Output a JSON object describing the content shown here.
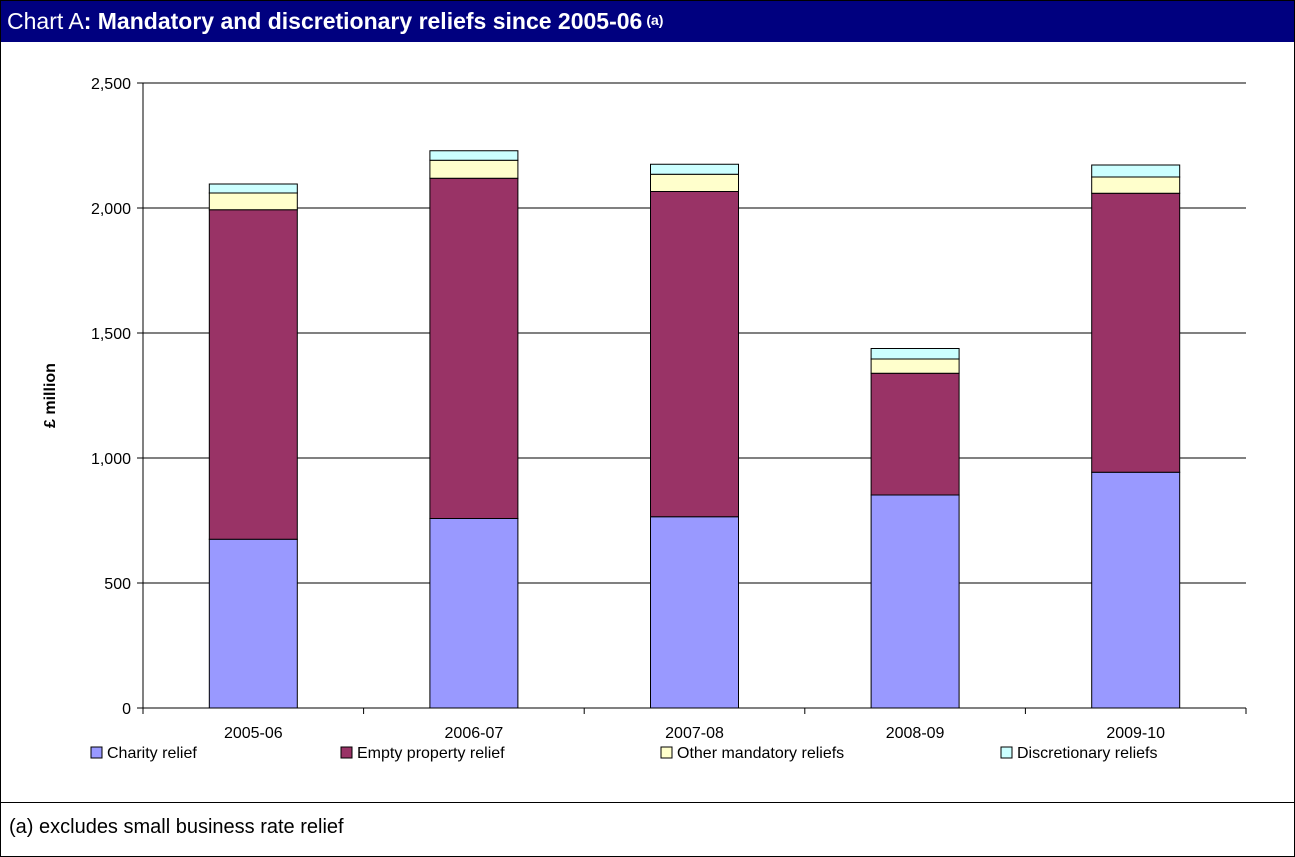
{
  "header": {
    "title_prefix": "Chart A",
    "title_main": ": Mandatory and discretionary reliefs since 2005-06",
    "title_note": "(a)"
  },
  "footnote": "(a) excludes small business rate relief",
  "chart_data": {
    "type": "bar",
    "stacked": true,
    "categories": [
      "2005-06",
      "2006-07",
      "2007-08",
      "2008-09",
      "2009-10"
    ],
    "series": [
      {
        "name": "Charity relief",
        "color": "#9999ff",
        "values": [
          675,
          758,
          765,
          852,
          943
        ]
      },
      {
        "name": "Empty property relief",
        "color": "#993366",
        "values": [
          1318,
          1361,
          1301,
          487,
          1116
        ]
      },
      {
        "name": "Other mandatory reliefs",
        "color": "#ffffcc",
        "values": [
          67,
          72,
          69,
          57,
          65
        ]
      },
      {
        "name": "Discretionary reliefs",
        "color": "#ccffff",
        "values": [
          36,
          38,
          40,
          42,
          48
        ]
      }
    ],
    "ylabel": "£ million",
    "ylim": [
      0,
      2500
    ],
    "yticks": [
      0,
      500,
      1000,
      1500,
      2000,
      2500
    ],
    "ytick_labels": [
      "0",
      "500",
      "1,000",
      "1,500",
      "2,000",
      "2,500"
    ],
    "grid": true,
    "legend": "bottom"
  }
}
